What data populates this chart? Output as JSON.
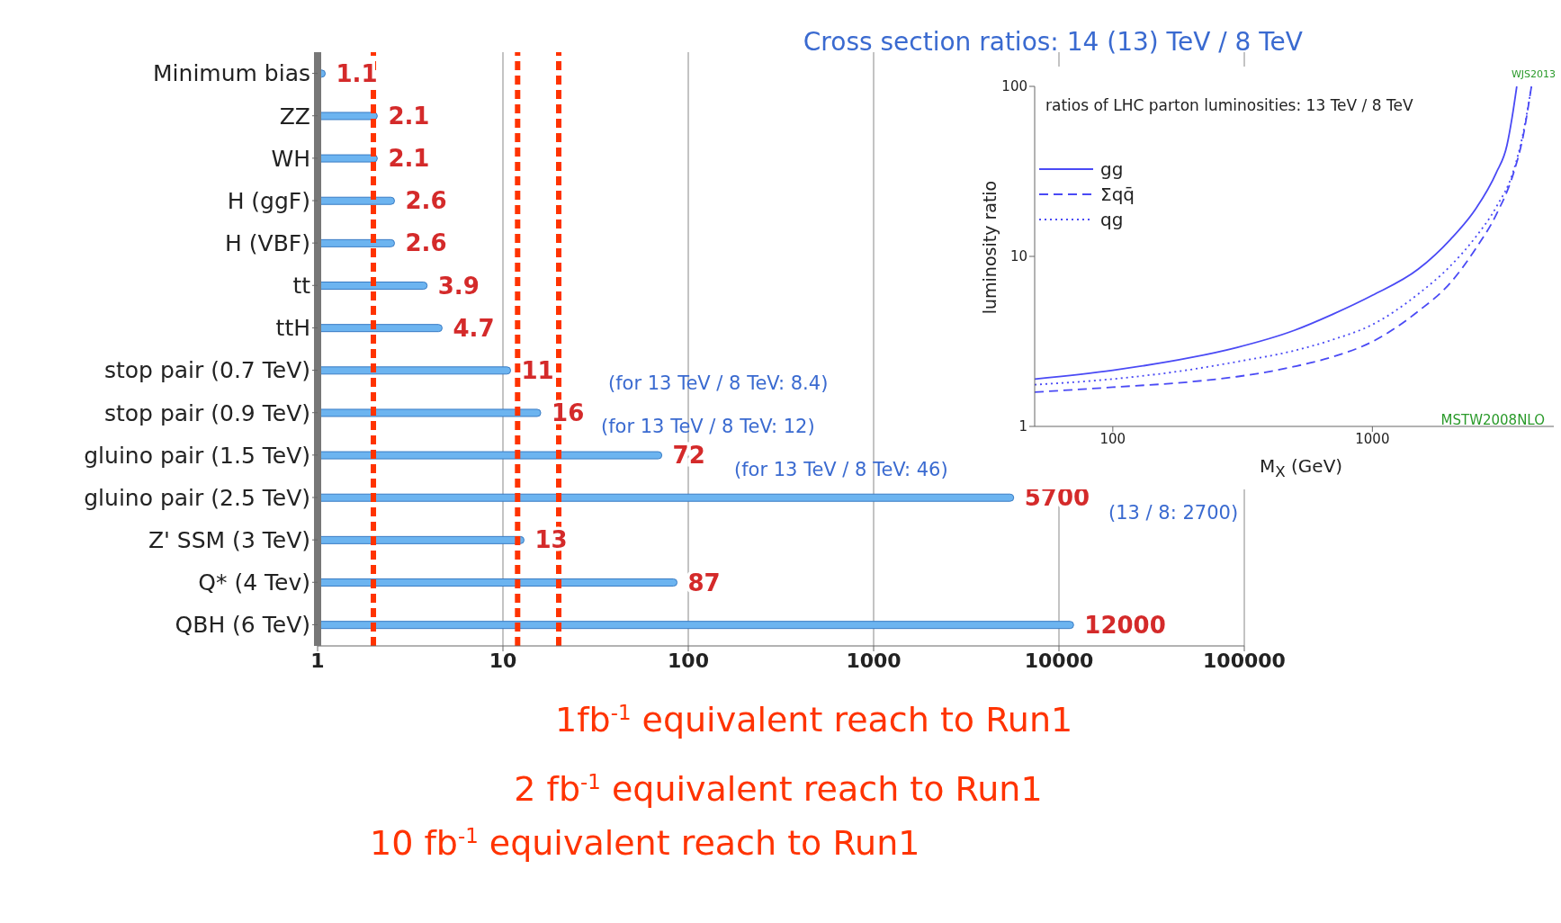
{
  "chart_data": [
    {
      "type": "bar",
      "orientation": "horizontal",
      "title": "Cross section ratios: 14 (13) TeV / 8 TeV",
      "categories": [
        "Minimum bias",
        "ZZ",
        "WH",
        "H (ggF)",
        "H (VBF)",
        "tt",
        "ttH",
        "stop pair (0.7 TeV)",
        "stop pair (0.9 TeV)",
        "gluino pair (1.5 TeV)",
        "gluino pair (2.5 TeV)",
        "Z' SSM (3 TeV)",
        "Q* (4 Tev)",
        "QBH (6 TeV)"
      ],
      "values": [
        1.1,
        2.1,
        2.1,
        2.6,
        2.6,
        3.9,
        4.7,
        11,
        16,
        72,
        5700,
        13,
        87,
        12000
      ],
      "color": "#6cb4f0",
      "data_labels": true,
      "log": "x",
      "xlim": [
        1,
        100000
      ],
      "xticks": [
        1,
        10,
        100,
        1000,
        10000,
        100000
      ],
      "grid": "x",
      "legend": false,
      "annotations": [
        "(for 13 TeV / 8 TeV: 8.4)",
        "(for 13 TeV / 8 TeV: 12)",
        "(for 13 TeV / 8 TeV: 46)",
        "(13 / 8: 2700)"
      ],
      "ref_lines": [
        {
          "axis": "x",
          "value": 20,
          "label": "1fb$^{-1}$ equivalent reach to Run1",
          "color": "#ff3300",
          "line_style": "dashed"
        },
        {
          "axis": "x",
          "value": 12,
          "label": "2 fb$^{-1}$ equivalent reach to Run1",
          "color": "#ff3300",
          "line_style": "dashed"
        },
        {
          "axis": "x",
          "value": 2,
          "label": "10 fb$^{-1}$ equivalent reach to Run1",
          "color": "#ff3300",
          "line_style": "dashed"
        }
      ]
    },
    {
      "type": "line",
      "title": "ratios of LHC parton luminosities: 13 TeV / 8 TeV",
      "xlabel": "M$_{X}$ (GeV)",
      "ylabel": "luminosity ratio",
      "log": "xy",
      "xlim": [
        50,
        5000
      ],
      "xticks": [
        100,
        1000
      ],
      "ylim": [
        1,
        100
      ],
      "yticks": [
        1,
        10,
        100
      ],
      "legend": "top left",
      "grid": false,
      "annotations": [
        "WJS2013",
        "MSTW2008NLO"
      ],
      "series": [
        {
          "name": "gg",
          "color": "#4a4af5",
          "line_style": "solid",
          "x": [
            50,
            100,
            200,
            300,
            500,
            700,
            1000,
            1500,
            2000,
            2500,
            3000,
            3300,
            3450,
            3600
          ],
          "values": [
            1.9,
            2.14,
            2.54,
            2.91,
            3.67,
            4.55,
            5.9,
            8.4,
            12.6,
            19,
            31,
            45,
            65,
            100
          ]
        },
        {
          "name": "Σqq̄",
          "color": "#4a4af5",
          "line_style": "dashed",
          "x": [
            50,
            100,
            200,
            300,
            500,
            700,
            1000,
            1500,
            2000,
            2500,
            3000,
            3500,
            3800,
            4100
          ],
          "values": [
            1.59,
            1.7,
            1.83,
            1.96,
            2.25,
            2.56,
            3.15,
            4.75,
            7,
            11.1,
            17.6,
            31,
            50,
            100
          ]
        },
        {
          "name": "qg",
          "color": "#4a4af5",
          "line_style": "dotted",
          "x": [
            50,
            100,
            200,
            300,
            500,
            700,
            1000,
            1500,
            2000,
            2500,
            3000,
            3500,
            3800,
            4100
          ],
          "values": [
            1.76,
            1.9,
            2.16,
            2.4,
            2.79,
            3.23,
            3.97,
            6,
            8.8,
            13,
            19.5,
            32,
            52,
            100
          ]
        }
      ]
    }
  ]
}
